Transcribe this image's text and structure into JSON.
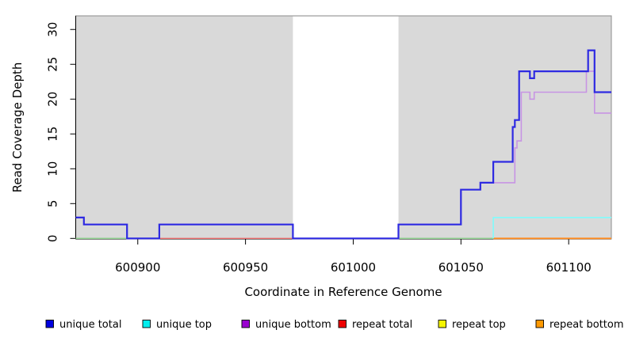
{
  "chart_data": {
    "type": "line",
    "subtype": "step",
    "title": "",
    "xlabel": "Coordinate in Reference Genome",
    "ylabel": "Read Coverage Depth",
    "xlim": [
      600871.2,
      601119.8
    ],
    "ylim": [
      0,
      32.3
    ],
    "xticks": [
      "600900",
      "600950",
      "601000",
      "601050",
      "601100"
    ],
    "xtick_values": [
      600900,
      600950,
      601000,
      601050,
      601100
    ],
    "yticks": [
      "0",
      "5",
      "10",
      "15",
      "20",
      "25",
      "30"
    ],
    "ytick_values": [
      0,
      5,
      10,
      15,
      20,
      25,
      30
    ],
    "grid": false,
    "plot_background": "#d9d9d9",
    "border_color": "#8c8c8c",
    "masked_region": {
      "x_start": 600972,
      "x_end": 601021,
      "color": "#ffffff"
    },
    "series": [
      {
        "name": "unique total",
        "legend_color": "#0000e0",
        "line_color": "#2e2ae2",
        "line_width": 2.2,
        "x_end": 601119.8,
        "steps": [
          [
            600871.2,
            3
          ],
          [
            600875,
            2
          ],
          [
            600895,
            0
          ],
          [
            600910,
            2
          ],
          [
            600972,
            0
          ],
          [
            601021,
            2
          ],
          [
            601050,
            7
          ],
          [
            601059,
            8
          ],
          [
            601065,
            11
          ],
          [
            601074,
            16
          ],
          [
            601075,
            17
          ],
          [
            601077,
            24
          ],
          [
            601082,
            23
          ],
          [
            601084,
            24
          ],
          [
            601109,
            27
          ],
          [
            601112,
            21
          ]
        ]
      },
      {
        "name": "unique top",
        "legend_color": "#00eeee",
        "line_color": "#7ffcfc",
        "line_width": 1.6,
        "x_end": 601119.8,
        "steps": [
          [
            601065,
            0
          ],
          [
            601065,
            3
          ]
        ]
      },
      {
        "name": "unique bottom",
        "legend_color": "#9a00d0",
        "line_color": "#c794e4",
        "line_width": 1.6,
        "x_end": 601119.8,
        "steps": [
          [
            600871.2,
            3
          ],
          [
            600875,
            2
          ],
          [
            600895,
            0
          ],
          [
            600910,
            2
          ],
          [
            600972,
            0
          ],
          [
            601021,
            2
          ],
          [
            601050,
            7
          ],
          [
            601059,
            8
          ],
          [
            601075,
            13
          ],
          [
            601076,
            14
          ],
          [
            601078,
            21
          ],
          [
            601082,
            20
          ],
          [
            601084,
            21
          ],
          [
            601108.2,
            24
          ],
          [
            601112,
            18
          ]
        ]
      },
      {
        "name": "repeat total",
        "legend_color": "#ee0000",
        "line_color": "#e96a6a",
        "line_width": 1.3,
        "x_end": 600972,
        "steps": [
          [
            600910,
            0
          ]
        ]
      },
      {
        "name": "repeat top",
        "legend_color": "#f5f500",
        "line_color": "#f5f500",
        "line_width": 1.3,
        "x_end": null,
        "steps": []
      },
      {
        "name": "repeat bottom",
        "legend_color": "#ff9900",
        "line_color": "#ff8c1f",
        "line_width": 1.8,
        "x_end": 601119.8,
        "steps": [
          [
            601065,
            0
          ]
        ]
      }
    ],
    "zero_line_overlap_segments": [
      {
        "color": "#8ecf8e",
        "x_start": 600871.2,
        "x_end": 600895
      },
      {
        "color": "#8ecf8e",
        "x_start": 601021,
        "x_end": 601065
      }
    ],
    "legend": {
      "position": "bottom",
      "entries": [
        "unique total",
        "unique top",
        "unique bottom",
        "repeat total",
        "repeat top",
        "repeat bottom"
      ]
    }
  }
}
